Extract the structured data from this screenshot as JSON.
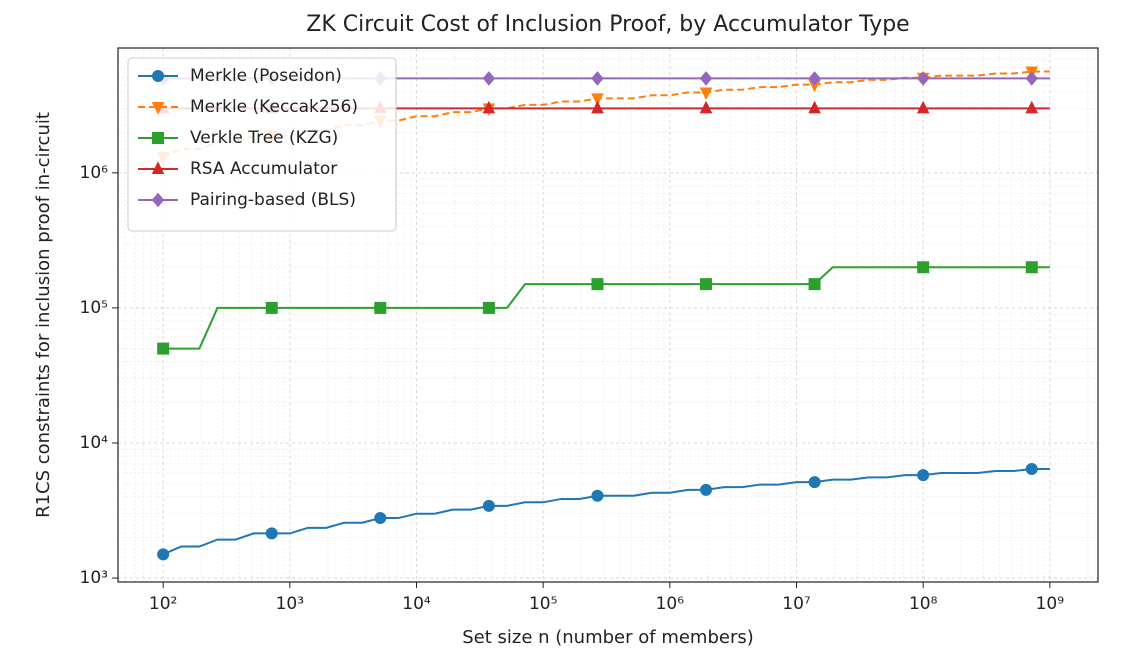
{
  "chart_data": {
    "type": "line",
    "title": "ZK Circuit Cost of Inclusion Proof, by Accumulator Type",
    "xlabel": "Set size n (number of members)",
    "ylabel": "R1CS constraints for inclusion proof in-circuit",
    "xscale": "log",
    "yscale": "log",
    "xlim": [
      44,
      2400000000
    ],
    "ylim": [
      935,
      8400000
    ],
    "xticks": [
      {
        "value": 100,
        "label": "10²"
      },
      {
        "value": 1000,
        "label": "10³"
      },
      {
        "value": 10000,
        "label": "10⁴"
      },
      {
        "value": 100000,
        "label": "10⁵"
      },
      {
        "value": 1000000,
        "label": "10⁶"
      },
      {
        "value": 10000000,
        "label": "10⁷"
      },
      {
        "value": 100000000,
        "label": "10⁸"
      },
      {
        "value": 1000000000,
        "label": "10⁹"
      }
    ],
    "yticks": [
      {
        "value": 1000,
        "label": "10³"
      },
      {
        "value": 10000,
        "label": "10⁴"
      },
      {
        "value": 100000,
        "label": "10⁵"
      },
      {
        "value": 1000000,
        "label": "10⁶"
      }
    ],
    "grid": true,
    "minor_grid": true,
    "legend": "upper left",
    "marker_every": 6,
    "x": [
      100,
      138.9,
      193.1,
      268.3,
      372.8,
      517.9,
      719.7,
      1000,
      1389,
      1931,
      2683,
      3728,
      5179,
      7197,
      10000,
      13895,
      19307,
      26827,
      37276,
      51795,
      71969,
      100000,
      138950,
      193070,
      268270,
      372759,
      517947,
      719686,
      1000000,
      1389495,
      1930698,
      2682696,
      3727594,
      5179475,
      7196857,
      10000000,
      13894955,
      19306977,
      26826958,
      37275937,
      51794747,
      71968567,
      100000000,
      138949549,
      193069773,
      268269580,
      372759372,
      517947468,
      719685673,
      1000000000
    ],
    "series": [
      {
        "name": "Merkle (Poseidon)",
        "color": "#1f77b4",
        "marker": "circle",
        "linestyle": "solid",
        "values": [
          1498,
          1712,
          1712,
          1926,
          1926,
          2140,
          2140,
          2140,
          2354,
          2354,
          2568,
          2568,
          2782,
          2782,
          2996,
          2996,
          3210,
          3210,
          3424,
          3424,
          3638,
          3638,
          3852,
          3852,
          4066,
          4066,
          4066,
          4280,
          4280,
          4494,
          4494,
          4708,
          4708,
          4922,
          4922,
          5136,
          5136,
          5350,
          5350,
          5564,
          5564,
          5778,
          5778,
          5992,
          5992,
          5992,
          6206,
          6206,
          6420,
          6420
        ]
      },
      {
        "name": "Merkle (Keccak256)",
        "color": "#ff7f0e",
        "marker": "triangle-down",
        "linestyle": "dashed",
        "values": [
          1312500,
          1500000,
          1500000,
          1687500,
          1687500,
          1875000,
          1875000,
          1875000,
          2062500,
          2062500,
          2250000,
          2250000,
          2437500,
          2437500,
          2625000,
          2625000,
          2812500,
          2812500,
          3000000,
          3000000,
          3187500,
          3187500,
          3375000,
          3375000,
          3562500,
          3562500,
          3562500,
          3750000,
          3750000,
          3937500,
          3937500,
          4125000,
          4125000,
          4312500,
          4312500,
          4500000,
          4500000,
          4687500,
          4687500,
          4875000,
          4875000,
          5062500,
          5062500,
          5250000,
          5250000,
          5250000,
          5437500,
          5437500,
          5625000,
          5625000
        ]
      },
      {
        "name": "Verkle Tree (KZG)",
        "color": "#2ca02c",
        "marker": "square",
        "linestyle": "solid",
        "values": [
          50000,
          50000,
          50000,
          100000,
          100000,
          100000,
          100000,
          100000,
          100000,
          100000,
          100000,
          100000,
          100000,
          100000,
          100000,
          100000,
          100000,
          100000,
          100000,
          100000,
          150000,
          150000,
          150000,
          150000,
          150000,
          150000,
          150000,
          150000,
          150000,
          150000,
          150000,
          150000,
          150000,
          150000,
          150000,
          150000,
          150000,
          200000,
          200000,
          200000,
          200000,
          200000,
          200000,
          200000,
          200000,
          200000,
          200000,
          200000,
          200000,
          200000
        ]
      },
      {
        "name": "RSA Accumulator",
        "color": "#d62728",
        "marker": "triangle-up",
        "linestyle": "solid",
        "values": [
          3000000,
          3000000,
          3000000,
          3000000,
          3000000,
          3000000,
          3000000,
          3000000,
          3000000,
          3000000,
          3000000,
          3000000,
          3000000,
          3000000,
          3000000,
          3000000,
          3000000,
          3000000,
          3000000,
          3000000,
          3000000,
          3000000,
          3000000,
          3000000,
          3000000,
          3000000,
          3000000,
          3000000,
          3000000,
          3000000,
          3000000,
          3000000,
          3000000,
          3000000,
          3000000,
          3000000,
          3000000,
          3000000,
          3000000,
          3000000,
          3000000,
          3000000,
          3000000,
          3000000,
          3000000,
          3000000,
          3000000,
          3000000,
          3000000,
          3000000
        ]
      },
      {
        "name": "Pairing-based (BLS)",
        "color": "#9467bd",
        "marker": "diamond",
        "linestyle": "solid",
        "values": [
          5000000,
          5000000,
          5000000,
          5000000,
          5000000,
          5000000,
          5000000,
          5000000,
          5000000,
          5000000,
          5000000,
          5000000,
          5000000,
          5000000,
          5000000,
          5000000,
          5000000,
          5000000,
          5000000,
          5000000,
          5000000,
          5000000,
          5000000,
          5000000,
          5000000,
          5000000,
          5000000,
          5000000,
          5000000,
          5000000,
          5000000,
          5000000,
          5000000,
          5000000,
          5000000,
          5000000,
          5000000,
          5000000,
          5000000,
          5000000,
          5000000,
          5000000,
          5000000,
          5000000,
          5000000,
          5000000,
          5000000,
          5000000,
          5000000,
          5000000
        ]
      }
    ]
  }
}
